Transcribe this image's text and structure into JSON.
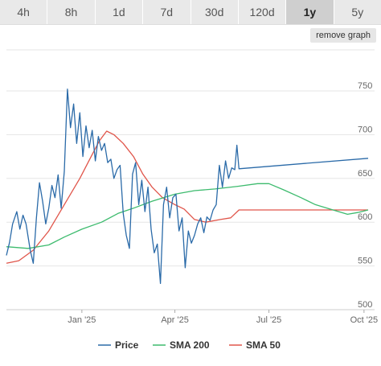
{
  "tabs": [
    {
      "label": "4h",
      "active": false
    },
    {
      "label": "8h",
      "active": false
    },
    {
      "label": "1d",
      "active": false
    },
    {
      "label": "7d",
      "active": false
    },
    {
      "label": "30d",
      "active": false
    },
    {
      "label": "120d",
      "active": false
    },
    {
      "label": "1y",
      "active": true
    },
    {
      "label": "5y",
      "active": false
    }
  ],
  "remove_graph_label": "remove graph",
  "chart_data": {
    "type": "line",
    "x_ticks": [
      "Jan '25",
      "Apr '25",
      "Jul '25",
      "Oct '25"
    ],
    "y_ticks": [
      500,
      550,
      600,
      650,
      700,
      750
    ],
    "ylim": [
      500,
      770
    ],
    "xlim": [
      "2024-10-20",
      "2025-10-05"
    ],
    "grid": true,
    "legend_position": "bottom",
    "series": [
      {
        "name": "Price",
        "color": "#2a6aa8",
        "points": [
          [
            "2024-10-20",
            562
          ],
          [
            "2024-10-23",
            577
          ],
          [
            "2024-10-26",
            598
          ],
          [
            "2024-10-30",
            612
          ],
          [
            "2024-11-02",
            592
          ],
          [
            "2024-11-05",
            608
          ],
          [
            "2024-11-08",
            598
          ],
          [
            "2024-11-12",
            568
          ],
          [
            "2024-11-15",
            553
          ],
          [
            "2024-11-18",
            605
          ],
          [
            "2024-11-21",
            645
          ],
          [
            "2024-11-24",
            624
          ],
          [
            "2024-11-27",
            598
          ],
          [
            "2024-11-30",
            616
          ],
          [
            "2024-12-03",
            642
          ],
          [
            "2024-12-06",
            628
          ],
          [
            "2024-12-09",
            654
          ],
          [
            "2024-12-12",
            616
          ],
          [
            "2024-12-15",
            658
          ],
          [
            "2024-12-18",
            752
          ],
          [
            "2024-12-21",
            708
          ],
          [
            "2024-12-24",
            735
          ],
          [
            "2024-12-27",
            690
          ],
          [
            "2024-12-30",
            725
          ],
          [
            "2025-01-02",
            675
          ],
          [
            "2025-01-05",
            710
          ],
          [
            "2025-01-08",
            685
          ],
          [
            "2025-01-11",
            705
          ],
          [
            "2025-01-14",
            670
          ],
          [
            "2025-01-17",
            698
          ],
          [
            "2025-01-20",
            682
          ],
          [
            "2025-01-23",
            690
          ],
          [
            "2025-01-26",
            668
          ],
          [
            "2025-01-29",
            672
          ],
          [
            "2025-02-01",
            650
          ],
          [
            "2025-02-04",
            660
          ],
          [
            "2025-02-07",
            665
          ],
          [
            "2025-02-10",
            610
          ],
          [
            "2025-02-13",
            585
          ],
          [
            "2025-02-16",
            570
          ],
          [
            "2025-02-19",
            655
          ],
          [
            "2025-02-22",
            668
          ],
          [
            "2025-02-25",
            620
          ],
          [
            "2025-02-28",
            648
          ],
          [
            "2025-03-03",
            612
          ],
          [
            "2025-03-06",
            640
          ],
          [
            "2025-03-09",
            592
          ],
          [
            "2025-03-12",
            565
          ],
          [
            "2025-03-15",
            575
          ],
          [
            "2025-03-18",
            530
          ],
          [
            "2025-03-21",
            620
          ],
          [
            "2025-03-24",
            640
          ],
          [
            "2025-03-27",
            605
          ],
          [
            "2025-03-30",
            628
          ],
          [
            "2025-04-02",
            632
          ],
          [
            "2025-04-05",
            590
          ],
          [
            "2025-04-08",
            605
          ],
          [
            "2025-04-11",
            548
          ],
          [
            "2025-04-14",
            590
          ],
          [
            "2025-04-17",
            576
          ],
          [
            "2025-04-20",
            585
          ],
          [
            "2025-04-23",
            598
          ],
          [
            "2025-04-26",
            605
          ],
          [
            "2025-04-29",
            588
          ],
          [
            "2025-05-02",
            606
          ],
          [
            "2025-05-05",
            602
          ],
          [
            "2025-05-08",
            614
          ],
          [
            "2025-05-11",
            620
          ],
          [
            "2025-05-14",
            665
          ],
          [
            "2025-05-17",
            640
          ],
          [
            "2025-05-20",
            670
          ],
          [
            "2025-05-23",
            650
          ],
          [
            "2025-05-26",
            662
          ],
          [
            "2025-05-29",
            660
          ],
          [
            "2025-05-31",
            688
          ],
          [
            "2025-06-02",
            661
          ],
          [
            "2025-10-05",
            673
          ]
        ]
      },
      {
        "name": "SMA 200",
        "color": "#3dbb6e",
        "points": [
          [
            "2024-10-20",
            572
          ],
          [
            "2024-11-10",
            570
          ],
          [
            "2024-11-30",
            574
          ],
          [
            "2024-12-15",
            583
          ],
          [
            "2025-01-01",
            592
          ],
          [
            "2025-01-20",
            600
          ],
          [
            "2025-02-05",
            610
          ],
          [
            "2025-02-20",
            616
          ],
          [
            "2025-03-10",
            624
          ],
          [
            "2025-04-01",
            632
          ],
          [
            "2025-04-20",
            636
          ],
          [
            "2025-05-10",
            638
          ],
          [
            "2025-06-01",
            641
          ],
          [
            "2025-06-20",
            644
          ],
          [
            "2025-07-01",
            644
          ],
          [
            "2025-07-15",
            637
          ],
          [
            "2025-08-01",
            628
          ],
          [
            "2025-08-15",
            620
          ],
          [
            "2025-09-01",
            614
          ],
          [
            "2025-09-15",
            609
          ],
          [
            "2025-09-25",
            611
          ],
          [
            "2025-10-05",
            614
          ]
        ]
      },
      {
        "name": "SMA 50",
        "color": "#e0554a",
        "points": [
          [
            "2024-10-20",
            553
          ],
          [
            "2024-11-01",
            556
          ],
          [
            "2024-11-15",
            568
          ],
          [
            "2024-11-30",
            590
          ],
          [
            "2024-12-15",
            620
          ],
          [
            "2024-12-30",
            650
          ],
          [
            "2025-01-10",
            675
          ],
          [
            "2025-01-18",
            693
          ],
          [
            "2025-01-25",
            704
          ],
          [
            "2025-02-01",
            700
          ],
          [
            "2025-02-10",
            690
          ],
          [
            "2025-02-20",
            675
          ],
          [
            "2025-03-01",
            655
          ],
          [
            "2025-03-10",
            640
          ],
          [
            "2025-03-20",
            628
          ],
          [
            "2025-04-01",
            620
          ],
          [
            "2025-04-10",
            615
          ],
          [
            "2025-04-20",
            603
          ],
          [
            "2025-05-01",
            600
          ],
          [
            "2025-05-15",
            603
          ],
          [
            "2025-05-25",
            605
          ],
          [
            "2025-06-02",
            614
          ],
          [
            "2025-10-05",
            614
          ]
        ]
      }
    ]
  }
}
